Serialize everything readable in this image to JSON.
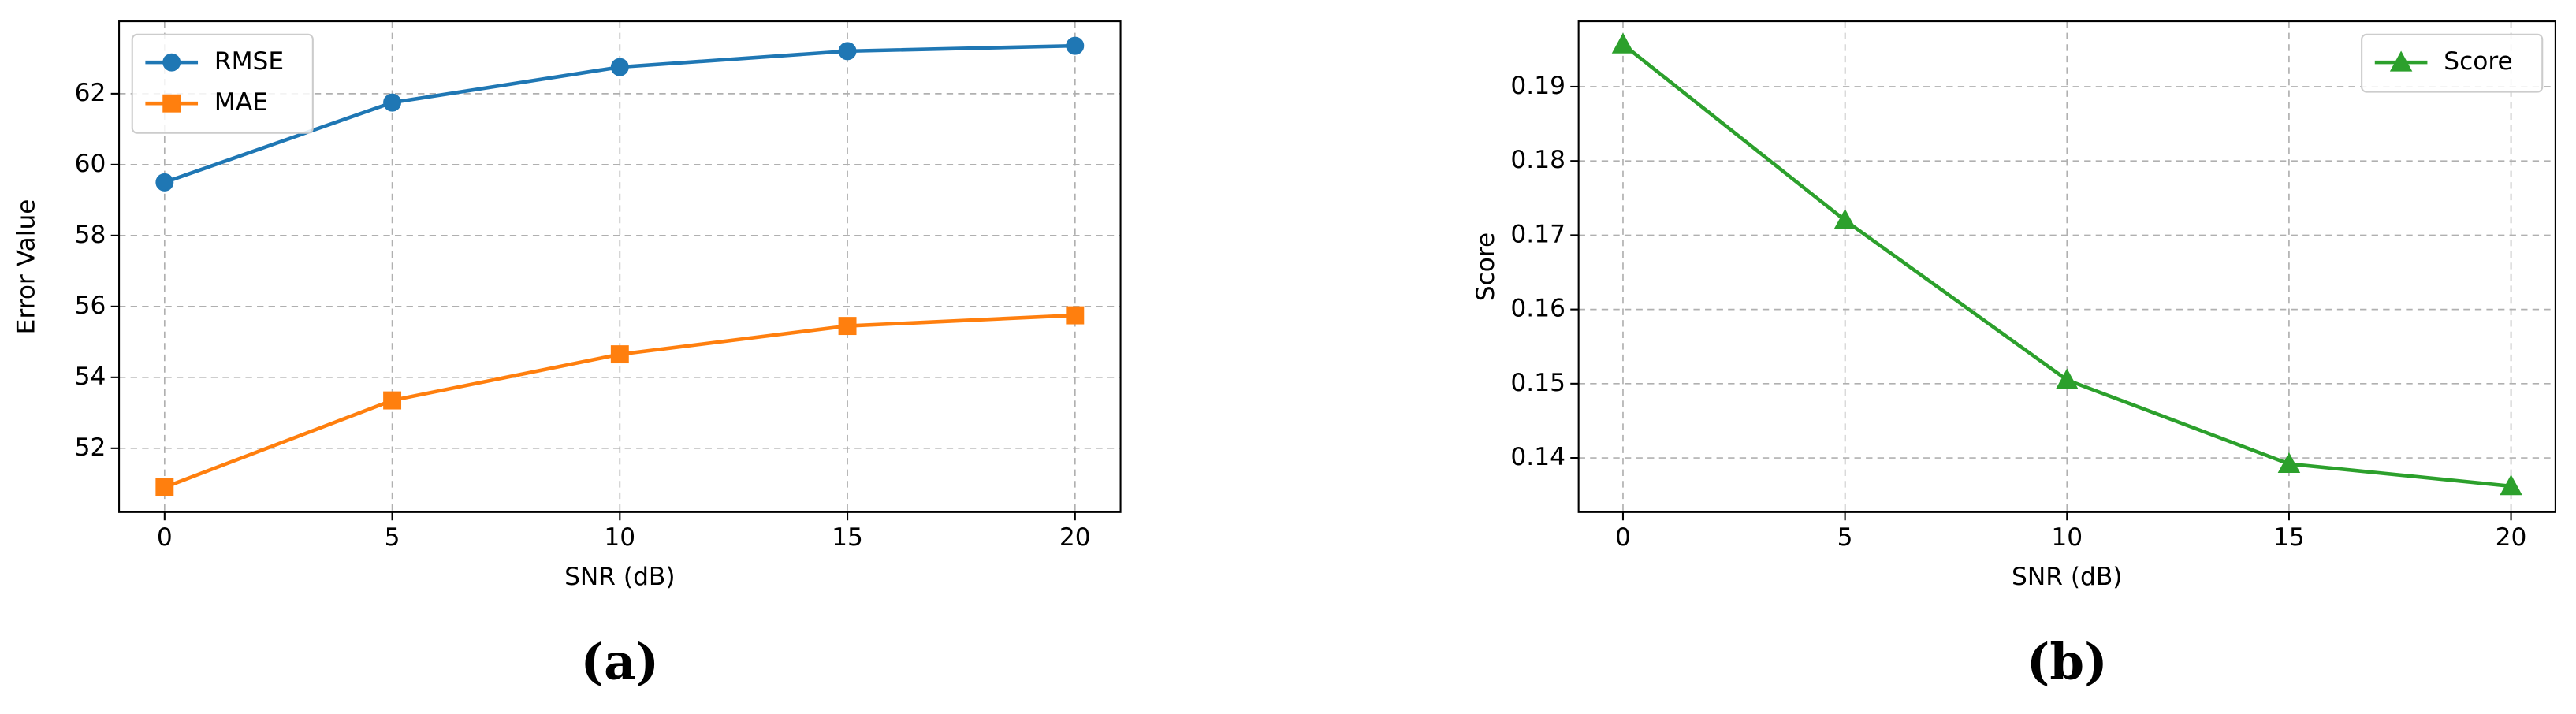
{
  "chart_data": [
    {
      "type": "line",
      "panel_label": "(a)",
      "xlabel": "SNR (dB)",
      "ylabel": "Error Value",
      "x": [
        0,
        5,
        10,
        15,
        20
      ],
      "xlim": [
        -1,
        21
      ],
      "xticks": [
        0,
        5,
        10,
        15,
        20
      ],
      "ylim": [
        50.2,
        64.04
      ],
      "yticks": [
        52,
        54,
        56,
        58,
        60,
        62
      ],
      "grid": true,
      "legend": "upper left",
      "series": [
        {
          "name": "RMSE",
          "color": "#1f77b4",
          "marker": "o",
          "values": [
            59.5,
            61.75,
            62.75,
            63.2,
            63.35
          ]
        },
        {
          "name": "MAE",
          "color": "#ff7f0e",
          "marker": "s",
          "values": [
            50.9,
            53.35,
            54.65,
            55.45,
            55.75
          ]
        }
      ]
    },
    {
      "type": "line",
      "panel_label": "(b)",
      "xlabel": "SNR (dB)",
      "ylabel": "Score",
      "x": [
        0,
        5,
        10,
        15,
        20
      ],
      "xlim": [
        -1,
        21
      ],
      "xticks": [
        0,
        5,
        10,
        15,
        20
      ],
      "ylim": [
        0.1327,
        0.1988
      ],
      "yticks": [
        0.14,
        0.15,
        0.16,
        0.17,
        0.18,
        0.19
      ],
      "grid": true,
      "legend": "upper right",
      "series": [
        {
          "name": "Score",
          "color": "#2ca02c",
          "marker": "^",
          "values": [
            0.1957,
            0.172,
            0.1505,
            0.1392,
            0.1362
          ]
        }
      ]
    }
  ]
}
